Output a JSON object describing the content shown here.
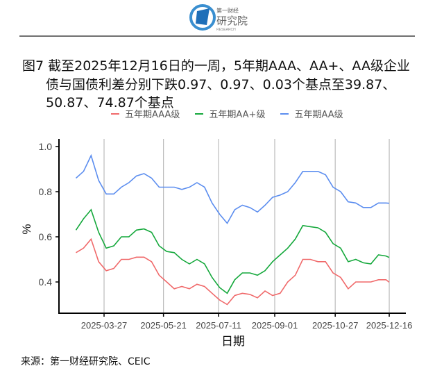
{
  "header": {
    "logo_text": "第一财经研究院",
    "logo_sub": "RESEARCH"
  },
  "title": {
    "line1": "图7  截至2025年12月16日的一周，5年期AAA、AA+、AA级企业",
    "line2": "债与国债利差分别下跌0.97、0.97、0.03个基点至39.87、",
    "line3": "50.87、74.87个基点"
  },
  "source": "来源：第一财经研究院、CEIC",
  "chart_data": {
    "type": "line",
    "xlabel": "日期",
    "ylabel": "%",
    "ylim": [
      0.27,
      1.02
    ],
    "yticks": [
      "0.4",
      "0.6",
      "0.8",
      "1.0"
    ],
    "xticks": [
      "2025-03-27",
      "2025-05-21",
      "2025-07-11",
      "2025-09-01",
      "2025-10-27",
      "2025-12-16"
    ],
    "grid": "vertical",
    "legend": "top",
    "x": [
      "2025-03-01",
      "2025-03-08",
      "2025-03-15",
      "2025-03-22",
      "2025-03-29",
      "2025-04-05",
      "2025-04-12",
      "2025-04-19",
      "2025-04-26",
      "2025-05-03",
      "2025-05-10",
      "2025-05-17",
      "2025-05-24",
      "2025-05-31",
      "2025-06-07",
      "2025-06-14",
      "2025-06-21",
      "2025-06-28",
      "2025-07-05",
      "2025-07-12",
      "2025-07-19",
      "2025-07-26",
      "2025-08-02",
      "2025-08-09",
      "2025-08-16",
      "2025-08-23",
      "2025-08-30",
      "2025-09-06",
      "2025-09-13",
      "2025-09-20",
      "2025-09-27",
      "2025-10-04",
      "2025-10-11",
      "2025-10-18",
      "2025-10-25",
      "2025-11-01",
      "2025-11-08",
      "2025-11-15",
      "2025-11-22",
      "2025-11-29",
      "2025-12-06",
      "2025-12-13",
      "2025-12-16"
    ],
    "series": [
      {
        "name": "五年期AAA级",
        "color": "#F0696A",
        "values": [
          0.53,
          0.55,
          0.59,
          0.49,
          0.45,
          0.46,
          0.5,
          0.5,
          0.51,
          0.51,
          0.49,
          0.43,
          0.4,
          0.37,
          0.38,
          0.37,
          0.39,
          0.38,
          0.35,
          0.32,
          0.3,
          0.34,
          0.35,
          0.345,
          0.33,
          0.36,
          0.34,
          0.35,
          0.4,
          0.43,
          0.5,
          0.5,
          0.49,
          0.49,
          0.44,
          0.42,
          0.37,
          0.4,
          0.4,
          0.4,
          0.41,
          0.41,
          0.3987
        ]
      },
      {
        "name": "五年期AA+级",
        "color": "#14A83B",
        "values": [
          0.63,
          0.68,
          0.72,
          0.62,
          0.55,
          0.56,
          0.6,
          0.6,
          0.63,
          0.635,
          0.62,
          0.56,
          0.535,
          0.53,
          0.5,
          0.48,
          0.5,
          0.48,
          0.42,
          0.375,
          0.35,
          0.41,
          0.44,
          0.44,
          0.43,
          0.45,
          0.49,
          0.52,
          0.55,
          0.59,
          0.65,
          0.645,
          0.64,
          0.62,
          0.57,
          0.55,
          0.49,
          0.5,
          0.485,
          0.48,
          0.52,
          0.515,
          0.5087
        ]
      },
      {
        "name": "五年期AA级",
        "color": "#5B8DEF",
        "values": [
          0.86,
          0.89,
          0.96,
          0.85,
          0.79,
          0.79,
          0.82,
          0.84,
          0.87,
          0.88,
          0.86,
          0.82,
          0.82,
          0.82,
          0.81,
          0.82,
          0.84,
          0.82,
          0.75,
          0.7,
          0.66,
          0.72,
          0.74,
          0.73,
          0.71,
          0.74,
          0.775,
          0.785,
          0.8,
          0.84,
          0.89,
          0.89,
          0.89,
          0.875,
          0.82,
          0.8,
          0.755,
          0.75,
          0.73,
          0.73,
          0.75,
          0.75,
          0.7487
        ]
      }
    ]
  }
}
